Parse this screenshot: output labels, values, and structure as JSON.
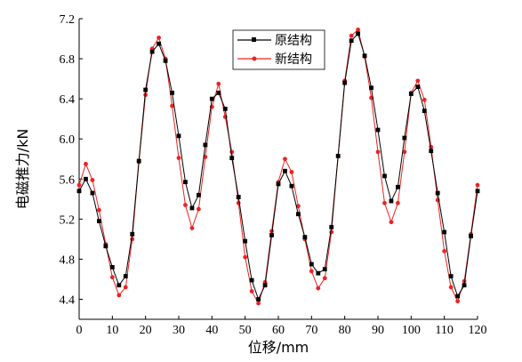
{
  "chart_data": {
    "type": "line",
    "xlabel": "位移/mm",
    "ylabel": "电磁推力/kN",
    "xlim": [
      0,
      120
    ],
    "ylim": [
      4.2,
      7.2
    ],
    "xticks": [
      0,
      10,
      20,
      30,
      40,
      50,
      60,
      70,
      80,
      90,
      100,
      110,
      120
    ],
    "yticks": [
      "4.4",
      "4.8",
      "5.2",
      "5.6",
      "6.0",
      "6.4",
      "6.8",
      "7.2"
    ],
    "legend_position": "top-center",
    "grid": false,
    "x": [
      0,
      2,
      4,
      6,
      8,
      10,
      12,
      14,
      16,
      18,
      20,
      22,
      24,
      26,
      28,
      30,
      32,
      34,
      36,
      38,
      40,
      42,
      44,
      46,
      48,
      50,
      52,
      54,
      56,
      58,
      60,
      62,
      64,
      66,
      68,
      70,
      72,
      74,
      76,
      78,
      80,
      82,
      84,
      86,
      88,
      90,
      92,
      94,
      96,
      98,
      100,
      102,
      104,
      106,
      108,
      110,
      112,
      114,
      116,
      118,
      120
    ],
    "series": [
      {
        "name": "原结构",
        "color": "#000000",
        "marker": "square",
        "values": [
          5.48,
          5.6,
          5.46,
          5.18,
          4.93,
          4.72,
          4.54,
          4.63,
          5.05,
          5.78,
          6.49,
          6.87,
          6.95,
          6.78,
          6.46,
          6.03,
          5.57,
          5.31,
          5.44,
          5.94,
          6.4,
          6.46,
          6.3,
          5.81,
          5.42,
          4.98,
          4.59,
          4.4,
          4.54,
          5.04,
          5.55,
          5.68,
          5.53,
          5.25,
          5.02,
          4.75,
          4.66,
          4.7,
          5.12,
          5.83,
          6.56,
          6.98,
          7.05,
          6.83,
          6.51,
          6.09,
          5.63,
          5.38,
          5.52,
          6.01,
          6.45,
          6.52,
          6.28,
          5.88,
          5.46,
          5.07,
          4.63,
          4.43,
          4.54,
          5.03,
          5.48
        ]
      },
      {
        "name": "新结构",
        "color": "#ee2222",
        "marker": "circle",
        "values": [
          5.54,
          5.75,
          5.59,
          5.29,
          4.95,
          4.62,
          4.44,
          4.52,
          5.0,
          5.77,
          6.44,
          6.9,
          7.01,
          6.8,
          6.33,
          5.81,
          5.34,
          5.11,
          5.3,
          5.82,
          6.32,
          6.55,
          6.22,
          5.87,
          5.36,
          4.82,
          4.48,
          4.36,
          4.57,
          5.08,
          5.57,
          5.8,
          5.67,
          5.33,
          5.0,
          4.68,
          4.51,
          4.61,
          5.07,
          5.83,
          6.58,
          7.03,
          7.09,
          6.82,
          6.41,
          5.87,
          5.36,
          5.17,
          5.36,
          5.87,
          6.46,
          6.58,
          6.39,
          5.92,
          5.39,
          4.88,
          4.52,
          4.38,
          4.58,
          5.05,
          5.54
        ]
      }
    ]
  }
}
